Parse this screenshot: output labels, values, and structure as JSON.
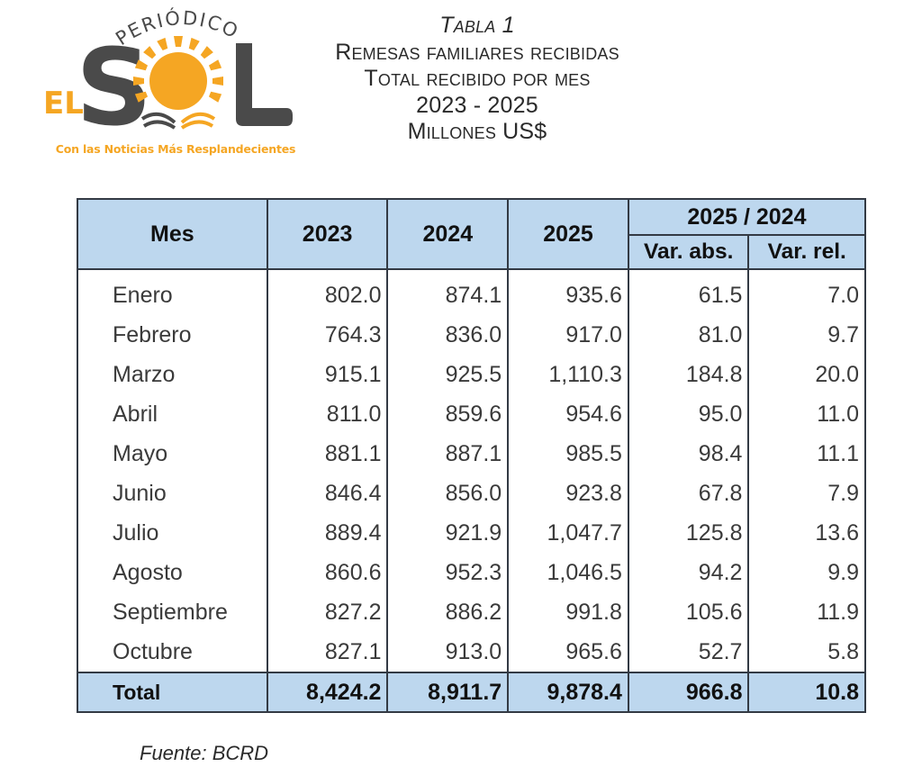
{
  "logo": {
    "arc_text": "PERIÓDICO",
    "prefix": "EL",
    "letters": [
      "S",
      "O",
      "L"
    ],
    "tagline": "Con las Noticias Más Resplandecientes",
    "colors": {
      "orange": "#f5a623",
      "gray": "#4a4a4a"
    }
  },
  "title": {
    "lines": [
      "Tabla 1",
      "Remesas familiares recibidas",
      "Total recibido por mes",
      "2023 - 2025",
      "Millones US$"
    ]
  },
  "table": {
    "headers": {
      "month": "Mes",
      "years": [
        "2023",
        "2024",
        "2025"
      ],
      "group": "2025 / 2024",
      "var_abs": "Var. abs.",
      "var_rel": "Var. rel."
    },
    "rows": [
      {
        "month": "Enero",
        "y2023": "802.0",
        "y2024": "874.1",
        "y2025": "935.6",
        "var_abs": "61.5",
        "var_rel": "7.0"
      },
      {
        "month": "Febrero",
        "y2023": "764.3",
        "y2024": "836.0",
        "y2025": "917.0",
        "var_abs": "81.0",
        "var_rel": "9.7"
      },
      {
        "month": "Marzo",
        "y2023": "915.1",
        "y2024": "925.5",
        "y2025": "1,110.3",
        "var_abs": "184.8",
        "var_rel": "20.0"
      },
      {
        "month": "Abril",
        "y2023": "811.0",
        "y2024": "859.6",
        "y2025": "954.6",
        "var_abs": "95.0",
        "var_rel": "11.0"
      },
      {
        "month": "Mayo",
        "y2023": "881.1",
        "y2024": "887.1",
        "y2025": "985.5",
        "var_abs": "98.4",
        "var_rel": "11.1"
      },
      {
        "month": "Junio",
        "y2023": "846.4",
        "y2024": "856.0",
        "y2025": "923.8",
        "var_abs": "67.8",
        "var_rel": "7.9"
      },
      {
        "month": "Julio",
        "y2023": "889.4",
        "y2024": "921.9",
        "y2025": "1,047.7",
        "var_abs": "125.8",
        "var_rel": "13.6"
      },
      {
        "month": "Agosto",
        "y2023": "860.6",
        "y2024": "952.3",
        "y2025": "1,046.5",
        "var_abs": "94.2",
        "var_rel": "9.9"
      },
      {
        "month": "Septiembre",
        "y2023": "827.2",
        "y2024": "886.2",
        "y2025": "991.8",
        "var_abs": "105.6",
        "var_rel": "11.9"
      },
      {
        "month": "Octubre",
        "y2023": "827.1",
        "y2024": "913.0",
        "y2025": "965.6",
        "var_abs": "52.7",
        "var_rel": "5.8"
      }
    ],
    "total": {
      "month": "Total",
      "y2023": "8,424.2",
      "y2024": "8,911.7",
      "y2025": "9,878.4",
      "var_abs": "966.8",
      "var_rel": "10.8"
    },
    "colors": {
      "header_fill": "#bdd7ee",
      "border": "#333a44"
    }
  },
  "footer": {
    "source": "Fuente: BCRD"
  }
}
